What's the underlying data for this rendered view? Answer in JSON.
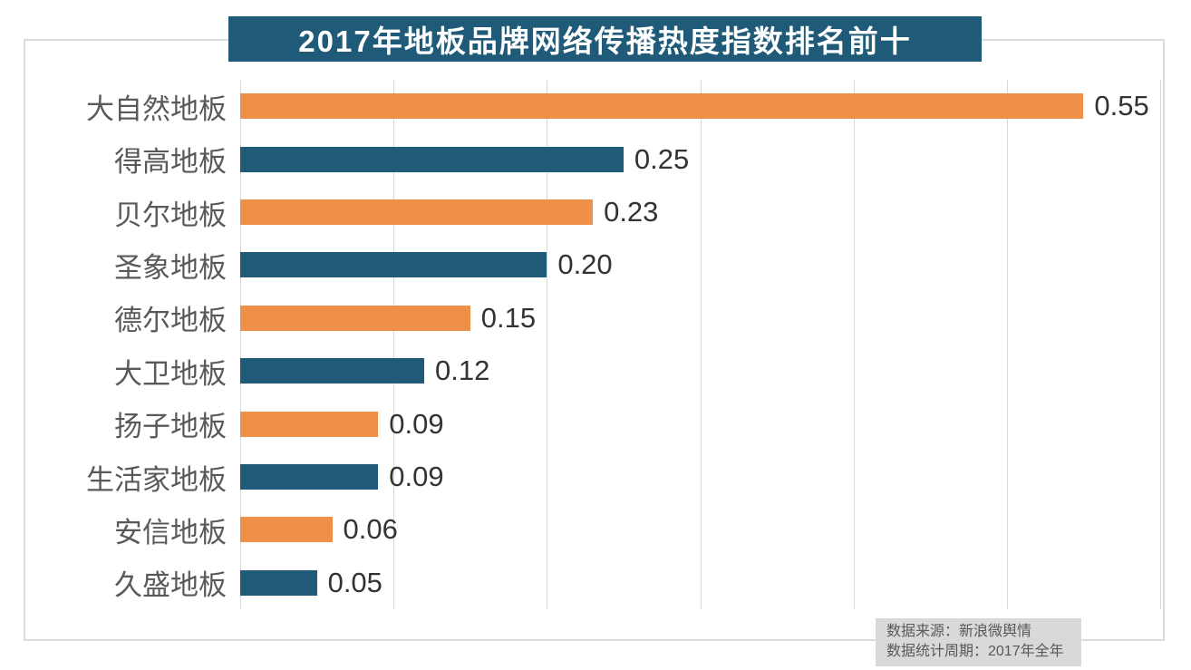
{
  "title": "2017年地板品牌网络传播热度指数排名前十",
  "source": {
    "line1": "数据来源：新浪微舆情",
    "line2": "数据统计周期：2017年全年"
  },
  "colors": {
    "banner_bg": "#1f5a78",
    "bar_orange": "#ef9049",
    "bar_teal": "#1f5a78",
    "gridline": "#d9d9d9",
    "frame_border": "#dbdbdb",
    "category_label": "#595959",
    "value_label": "#333333",
    "title_text": "#ffffff",
    "source_bg": "#d9d9d9",
    "source_text": "#595959"
  },
  "chart_data": {
    "type": "bar",
    "orientation": "horizontal",
    "title": "2017年地板品牌网络传播热度指数排名前十",
    "categories": [
      "大自然地板",
      "得高地板",
      "贝尔地板",
      "圣象地板",
      "德尔地板",
      "大卫地板",
      "扬子地板",
      "生活家地板",
      "安信地板",
      "久盛地板"
    ],
    "values": [
      0.55,
      0.25,
      0.23,
      0.2,
      0.15,
      0.12,
      0.09,
      0.09,
      0.06,
      0.05
    ],
    "value_labels": [
      "0.55",
      "0.25",
      "0.23",
      "0.20",
      "0.15",
      "0.12",
      "0.09",
      "0.09",
      "0.06",
      "0.05"
    ],
    "xlim": [
      0,
      0.6
    ],
    "gridline_step": 0.1,
    "grid": true,
    "legend": false,
    "bar_color_pattern": [
      "#ef9049",
      "#1f5a78"
    ],
    "xlabel": "",
    "ylabel": ""
  }
}
